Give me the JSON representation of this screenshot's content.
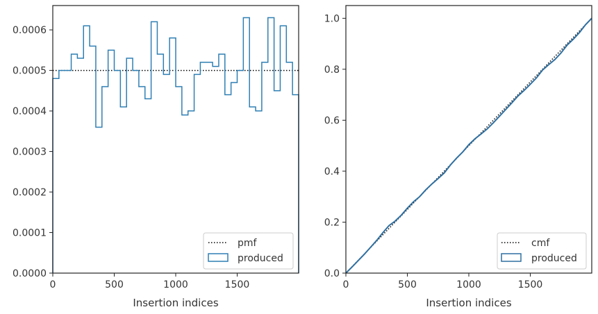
{
  "chart_data": [
    {
      "type": "histogram-step",
      "xlabel": "Insertion indices",
      "ylabel": "",
      "xlim": [
        0,
        2000
      ],
      "ylim": [
        0,
        0.00066
      ],
      "xticks": [
        0,
        500,
        1000,
        1500
      ],
      "xtick_labels": [
        "0",
        "500",
        "1000",
        "1500"
      ],
      "yticks": [
        0,
        0.0001,
        0.0002,
        0.0003,
        0.0004,
        0.0005,
        0.0006
      ],
      "ytick_labels": [
        "0.0000",
        "0.0001",
        "0.0002",
        "0.0003",
        "0.0004",
        "0.0005",
        "0.0006"
      ],
      "bin_width": 50,
      "reference": {
        "name": "pmf",
        "value": 0.0005,
        "style": "dotted",
        "color": "#000000"
      },
      "series": [
        {
          "name": "produced",
          "color": "#2f7fb3",
          "values": [
            0.00048,
            0.0005,
            0.0005,
            0.00054,
            0.00053,
            0.00061,
            0.00056,
            0.00036,
            0.00046,
            0.00055,
            0.0005,
            0.00041,
            0.00053,
            0.0005,
            0.00046,
            0.00043,
            0.00062,
            0.00054,
            0.00049,
            0.00058,
            0.00046,
            0.00039,
            0.0004,
            0.00049,
            0.00052,
            0.00052,
            0.00051,
            0.00054,
            0.00044,
            0.00047,
            0.0005,
            0.00063,
            0.00041,
            0.0004,
            0.00052,
            0.00063,
            0.00045,
            0.00061,
            0.00052,
            0.00044
          ]
        }
      ],
      "legend": {
        "position": "lower-right",
        "entries": [
          "pmf",
          "produced"
        ]
      },
      "grid": false
    },
    {
      "type": "line",
      "xlabel": "Insertion indices",
      "ylabel": "",
      "xlim": [
        0,
        2000
      ],
      "ylim": [
        0,
        1.05
      ],
      "xticks": [
        0,
        500,
        1000,
        1500
      ],
      "xtick_labels": [
        "0",
        "500",
        "1000",
        "1500"
      ],
      "yticks": [
        0,
        0.2,
        0.4,
        0.6,
        0.8,
        1.0
      ],
      "ytick_labels": [
        "0.0",
        "0.2",
        "0.4",
        "0.6",
        "0.8",
        "1.0"
      ],
      "reference": {
        "name": "cmf",
        "x": [
          0,
          2000
        ],
        "y": [
          0,
          1.0
        ],
        "style": "dotted",
        "color": "#000000"
      },
      "series": [
        {
          "name": "produced",
          "color": "#2f6fa0",
          "x": [
            0,
            50,
            100,
            150,
            200,
            250,
            300,
            350,
            400,
            450,
            500,
            550,
            600,
            650,
            700,
            750,
            800,
            850,
            900,
            950,
            1000,
            1050,
            1100,
            1150,
            1200,
            1250,
            1300,
            1350,
            1400,
            1450,
            1500,
            1550,
            1600,
            1650,
            1700,
            1750,
            1800,
            1850,
            1900,
            1950,
            2000
          ],
          "y": [
            0,
            0.024,
            0.049,
            0.074,
            0.101,
            0.128,
            0.158,
            0.186,
            0.204,
            0.227,
            0.255,
            0.28,
            0.3,
            0.327,
            0.35,
            0.371,
            0.393,
            0.424,
            0.451,
            0.475,
            0.504,
            0.527,
            0.546,
            0.566,
            0.59,
            0.616,
            0.642,
            0.668,
            0.695,
            0.717,
            0.741,
            0.766,
            0.797,
            0.818,
            0.838,
            0.864,
            0.895,
            0.918,
            0.944,
            0.975,
            1.0
          ]
        }
      ],
      "legend": {
        "position": "lower-right",
        "entries": [
          "cmf",
          "produced"
        ]
      },
      "grid": false
    }
  ]
}
